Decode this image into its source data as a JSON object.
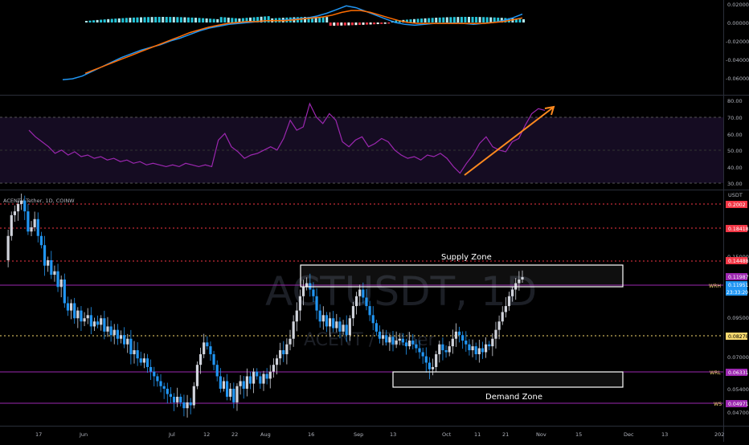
{
  "chart_data": {
    "type": "candlestick",
    "symbol_header": "ACENT / Tether, 1D, COINW",
    "currency_label": "USDT",
    "watermark_main": "ACTUSDT, 1D",
    "watermark_sub": "ACENT / Tether",
    "x_labels": [
      "17",
      "Jun",
      "Jul",
      "12",
      "22",
      "Aug",
      "16",
      "Sep",
      "13",
      "Oct",
      "11",
      "21",
      "Nov",
      "15",
      "Dec",
      "13",
      "202"
    ],
    "macd_axis": [
      "0.02000",
      "0.00000",
      "-0.02000",
      "-0.04000",
      "-0.06000"
    ],
    "rsi_axis": [
      "80.00",
      "70.00",
      "60.00",
      "50.00",
      "40.00",
      "30.00"
    ],
    "rsi_band": [
      30,
      70
    ],
    "price_axis": [
      "0.15000",
      "0.09500",
      "0.07000",
      "0.05400",
      "0.04700"
    ],
    "levels": [
      {
        "label": "",
        "value": "0.2002",
        "color": "#f23645"
      },
      {
        "label": "",
        "value": "0.18418",
        "color": "#f23645"
      },
      {
        "label": "",
        "value": "0.14488",
        "color": "#f23645"
      },
      {
        "label": "WRH",
        "value": "0.11987",
        "color": "#9c27b0"
      },
      {
        "label": "",
        "value": "0.11951",
        "color": "#2196f3"
      },
      {
        "label": "",
        "value": "23:33:20",
        "color": "#2196f3"
      },
      {
        "label": "",
        "value": "0.08278",
        "color": "#f5d76e"
      },
      {
        "label": "WRL",
        "value": "0.06331",
        "color": "#9c27b0"
      },
      {
        "label": "WS",
        "value": "0.04971",
        "color": "#9c27b0"
      }
    ],
    "zones": {
      "supply": "Supply Zone",
      "demand": "Demand Zone"
    },
    "closes": [
      0.135,
      0.16,
      0.185,
      0.19,
      0.2,
      0.205,
      0.19,
      0.165,
      0.17,
      0.18,
      0.16,
      0.15,
      0.13,
      0.135,
      0.122,
      0.125,
      0.112,
      0.118,
      0.1,
      0.095,
      0.1,
      0.09,
      0.095,
      0.088,
      0.09,
      0.092,
      0.085,
      0.088,
      0.086,
      0.09,
      0.082,
      0.085,
      0.08,
      0.083,
      0.078,
      0.08,
      0.075,
      0.078,
      0.07,
      0.072,
      0.068,
      0.066,
      0.068,
      0.064,
      0.062,
      0.06,
      0.058,
      0.056,
      0.055,
      0.053,
      0.052,
      0.05,
      0.052,
      0.05,
      0.048,
      0.05,
      0.049,
      0.056,
      0.065,
      0.07,
      0.076,
      0.074,
      0.07,
      0.065,
      0.06,
      0.055,
      0.058,
      0.052,
      0.055,
      0.05,
      0.056,
      0.058,
      0.055,
      0.06,
      0.057,
      0.062,
      0.06,
      0.057,
      0.061,
      0.059,
      0.062,
      0.065,
      0.068,
      0.072,
      0.07,
      0.075,
      0.078,
      0.088,
      0.095,
      0.105,
      0.112,
      0.115,
      0.11,
      0.105,
      0.095,
      0.088,
      0.092,
      0.085,
      0.09,
      0.084,
      0.088,
      0.082,
      0.086,
      0.08,
      0.09,
      0.098,
      0.105,
      0.11,
      0.104,
      0.098,
      0.092,
      0.087,
      0.082,
      0.078,
      0.08,
      0.076,
      0.079,
      0.075,
      0.077,
      0.078,
      0.076,
      0.074,
      0.077,
      0.075,
      0.073,
      0.071,
      0.069,
      0.066,
      0.063,
      0.064,
      0.07,
      0.075,
      0.072,
      0.071,
      0.074,
      0.078,
      0.082,
      0.08,
      0.077,
      0.075,
      0.072,
      0.074,
      0.07,
      0.073,
      0.071,
      0.075,
      0.074,
      0.078,
      0.083,
      0.088,
      0.094,
      0.098,
      0.105,
      0.11,
      0.115,
      0.118,
      0.12
    ],
    "macd_line": [
      -0.062,
      -0.061,
      -0.058,
      -0.053,
      -0.048,
      -0.043,
      -0.038,
      -0.034,
      -0.03,
      -0.027,
      -0.024,
      -0.02,
      -0.017,
      -0.013,
      -0.009,
      -0.006,
      -0.004,
      -0.002,
      -0.001,
      0.0,
      0.001,
      0.002,
      0.002,
      0.003,
      0.004,
      0.005,
      0.007,
      0.01,
      0.014,
      0.018,
      0.016,
      0.012,
      0.008,
      0.004,
      0.0,
      -0.002,
      -0.003,
      -0.002,
      -0.001,
      -0.001,
      -0.0005,
      -0.001,
      -0.002,
      -0.001,
      0.0,
      0.002,
      0.005,
      0.009
    ],
    "signal_line": [
      -0.058,
      -0.055,
      -0.051,
      -0.047,
      -0.043,
      -0.039,
      -0.035,
      -0.031,
      -0.027,
      -0.023,
      -0.019,
      -0.015,
      -0.011,
      -0.008,
      -0.005,
      -0.003,
      -0.001,
      0.0,
      0.001,
      0.001,
      0.002,
      0.002,
      0.002,
      0.003,
      0.004,
      0.005,
      0.006,
      0.008,
      0.011,
      0.013,
      0.013,
      0.011,
      0.008,
      0.005,
      0.002,
      0.0,
      -0.001,
      -0.001,
      -0.001,
      -0.001,
      -0.001,
      -0.001,
      -0.001,
      -0.001,
      0.0,
      0.001,
      0.003,
      0.005
    ],
    "rsi_values": [
      62,
      58,
      55,
      52,
      48,
      50,
      47,
      49,
      46,
      47,
      45,
      46,
      44,
      45,
      43,
      44,
      42,
      43,
      41,
      42,
      41,
      40,
      41,
      40,
      42,
      41,
      40,
      41,
      40,
      56,
      60,
      52,
      49,
      45,
      47,
      48,
      50,
      52,
      50,
      57,
      68,
      62,
      64,
      78,
      70,
      66,
      72,
      68,
      55,
      52,
      56,
      58,
      52,
      54,
      57,
      55,
      50,
      47,
      45,
      46,
      44,
      47,
      46,
      48,
      45,
      40,
      36,
      42,
      47,
      54,
      58,
      52,
      50,
      49,
      55,
      57,
      65,
      72,
      75,
      74
    ]
  }
}
